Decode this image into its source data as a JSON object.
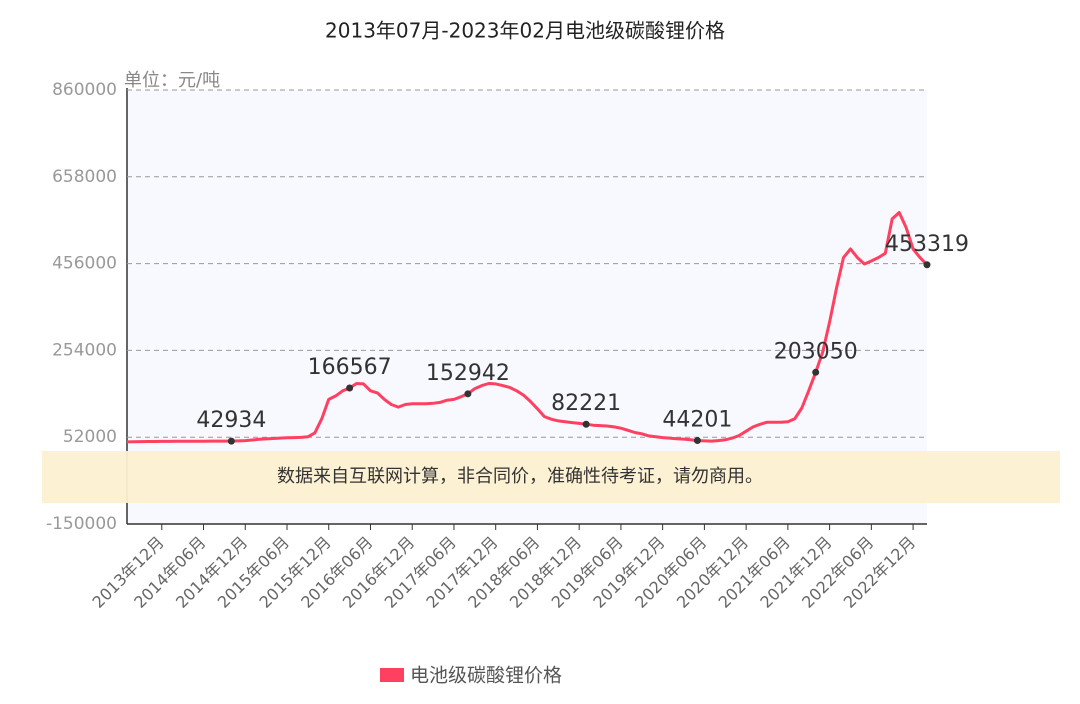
{
  "chart_data": {
    "type": "line",
    "title": "2013年07月-2023年02月电池级碳酸锂价格",
    "y_axis_label": "单位：元/吨",
    "annotation": "数据来自互联网计算，非合同价，准确性待考证，请勿商用。",
    "categories": [
      null,
      null,
      null,
      null,
      null,
      "2013年12月",
      null,
      null,
      null,
      null,
      null,
      "2014年06月",
      null,
      null,
      null,
      null,
      null,
      "2014年12月",
      null,
      null,
      null,
      null,
      null,
      "2015年06月",
      null,
      null,
      null,
      null,
      null,
      "2015年12月",
      null,
      null,
      null,
      null,
      null,
      "2016年06月",
      null,
      null,
      null,
      null,
      null,
      "2016年12月",
      null,
      null,
      null,
      null,
      null,
      "2017年06月",
      null,
      null,
      null,
      null,
      null,
      "2017年12月",
      null,
      null,
      null,
      null,
      null,
      "2018年06月",
      null,
      null,
      null,
      null,
      null,
      "2018年12月",
      null,
      null,
      null,
      null,
      null,
      "2019年06月",
      null,
      null,
      null,
      null,
      null,
      "2019年12月",
      null,
      null,
      null,
      null,
      null,
      "2020年06月",
      null,
      null,
      null,
      null,
      null,
      "2020年12月",
      null,
      null,
      null,
      null,
      null,
      "2021年06月",
      null,
      null,
      null,
      null,
      null,
      "2021年12月",
      null,
      null,
      null,
      null,
      null,
      "2022年06月",
      null,
      null,
      null,
      null,
      null,
      "2022年12月",
      null,
      null
    ],
    "series": [
      {
        "name": "电池级碳酸锂价格",
        "color": "#ff4060",
        "values": [
          41000,
          41500,
          41800,
          42000,
          42000,
          42200,
          42300,
          42500,
          42600,
          42700,
          42800,
          42800,
          42900,
          42900,
          42900,
          42934,
          43500,
          44000,
          45500,
          47000,
          48000,
          49000,
          50000,
          50500,
          51000,
          51500,
          53000,
          62000,
          95000,
          140000,
          148000,
          160000,
          166567,
          177000,
          176000,
          160000,
          155000,
          140000,
          128000,
          122000,
          128000,
          130000,
          130000,
          130000,
          131000,
          133000,
          138000,
          140000,
          146000,
          152942,
          165000,
          172000,
          177000,
          176000,
          172000,
          168000,
          160000,
          150000,
          135000,
          118000,
          100000,
          94000,
          90000,
          88000,
          86000,
          84000,
          82221,
          80000,
          79000,
          78000,
          76000,
          73000,
          68000,
          63000,
          60000,
          55000,
          53000,
          51000,
          50000,
          48500,
          47500,
          46000,
          44201,
          43500,
          43000,
          44000,
          46000,
          50000,
          56000,
          66000,
          76000,
          82000,
          87000,
          87000,
          87000,
          88000,
          95000,
          120000,
          160000,
          203050,
          250000,
          320000,
          400000,
          470000,
          490000,
          470000,
          455000,
          462000,
          470000,
          480000,
          560000,
          575000,
          540000,
          490000,
          470000,
          453319
        ]
      }
    ],
    "labeled_points": [
      15,
      32,
      49,
      66,
      82,
      99,
      115
    ],
    "ylim": [
      -150000,
      860000
    ],
    "yticks": [
      -150000,
      52000,
      254000,
      456000,
      658000,
      860000
    ],
    "grid": true,
    "legend": "bottom"
  }
}
